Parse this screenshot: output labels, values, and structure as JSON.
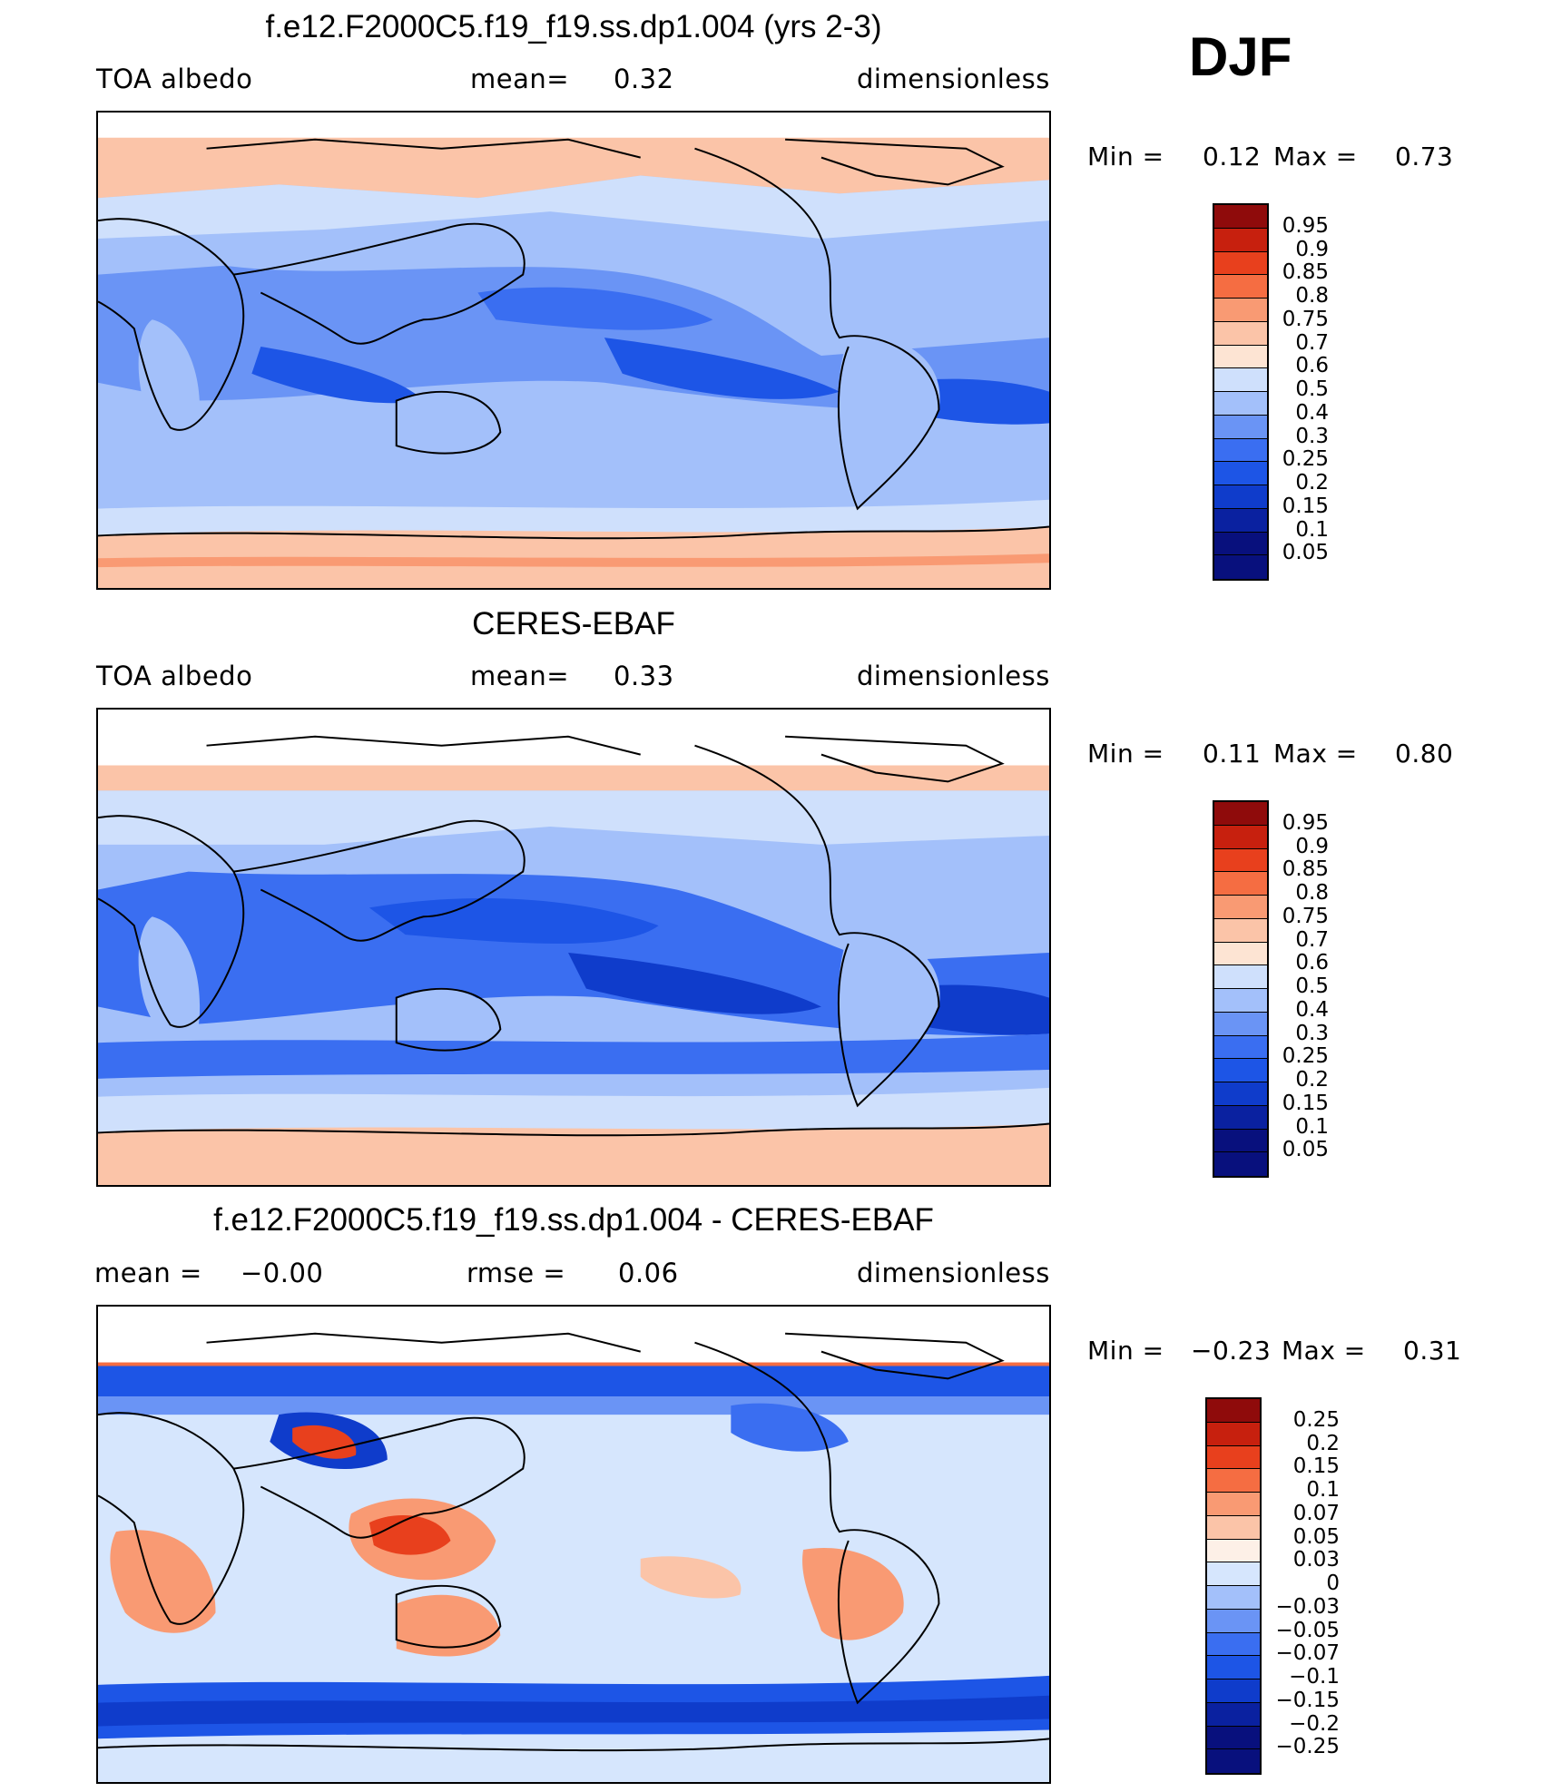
{
  "season": "DJF",
  "palette_abs": [
    "#08107d",
    "#0a21a0",
    "#0f3ccb",
    "#1d55e6",
    "#3a6ef1",
    "#6a94f5",
    "#a3c0fa",
    "#cfe0fc",
    "#fde4d3",
    "#fbc4a8",
    "#f99a73",
    "#f56d42",
    "#e8401d",
    "#c7200e",
    "#8f0b0b"
  ],
  "palette_diff": [
    "#08107d",
    "#0a21a0",
    "#0f3ccb",
    "#1d55e6",
    "#3a6ef1",
    "#6a94f5",
    "#a3c0fa",
    "#d6e6fd",
    "#fdf0e7",
    "#fbc4a8",
    "#f99a73",
    "#f56d42",
    "#e8401d",
    "#c7200e",
    "#8f0b0b"
  ],
  "panels": [
    {
      "title": "f.e12.F2000C5.f19_f19.ss.dp1.004 (yrs 2-3)",
      "left_label": "TOA albedo",
      "center_label": "mean=",
      "center_value": "0.32",
      "right_label": "dimensionless",
      "min_label": "Min =",
      "min_value": "0.12",
      "max_label": "Max =",
      "max_value": "0.73",
      "levels": [
        "0.95",
        "0.9",
        "0.85",
        "0.8",
        "0.75",
        "0.7",
        "0.6",
        "0.5",
        "0.4",
        "0.3",
        "0.25",
        "0.2",
        "0.15",
        "0.1",
        "0.05"
      ]
    },
    {
      "title": "CERES-EBAF",
      "left_label": "TOA albedo",
      "center_label": "mean=",
      "center_value": "0.33",
      "right_label": "dimensionless",
      "min_label": "Min =",
      "min_value": "0.11",
      "max_label": "Max =",
      "max_value": "0.80",
      "levels": [
        "0.95",
        "0.9",
        "0.85",
        "0.8",
        "0.75",
        "0.7",
        "0.6",
        "0.5",
        "0.4",
        "0.3",
        "0.25",
        "0.2",
        "0.15",
        "0.1",
        "0.05"
      ]
    },
    {
      "title": "f.e12.F2000C5.f19_f19.ss.dp1.004 - CERES-EBAF",
      "left_label": "mean =",
      "left_value": "−0.00",
      "center_label": "rmse =",
      "center_value": "0.06",
      "right_label": "dimensionless",
      "min_label": "Min =",
      "min_value": "−0.23",
      "max_label": "Max =",
      "max_value": "0.31",
      "levels": [
        "0.25",
        "0.2",
        "0.15",
        "0.1",
        "0.07",
        "0.05",
        "0.03",
        "0",
        "−0.03",
        "−0.05",
        "−0.07",
        "−0.1",
        "−0.15",
        "−0.2",
        "−0.25"
      ]
    }
  ]
}
